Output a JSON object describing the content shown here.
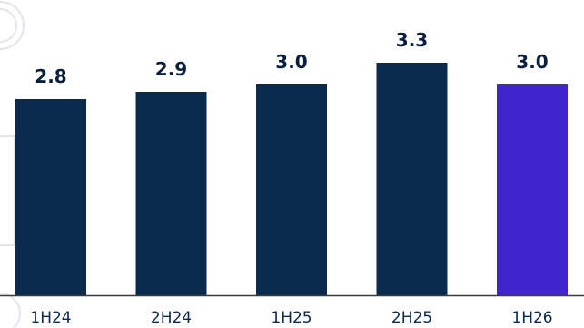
{
  "chart_data": {
    "type": "bar",
    "categories": [
      "1H24",
      "2H24",
      "1H25",
      "2H25",
      "1H26"
    ],
    "values": [
      2.8,
      2.9,
      3.0,
      3.3,
      3.0
    ],
    "data_labels": [
      "2.8",
      "2.9",
      "3.0",
      "3.3",
      "3.0"
    ],
    "title": "",
    "xlabel": "",
    "ylabel": "",
    "ylim": [
      0,
      3.3
    ],
    "grid": false,
    "legend": "none",
    "colors": {
      "default_bar": "#0a2b4e",
      "highlight_bar": "#4125cc",
      "label_text": "#0a1f3d",
      "tick_text": "#0a2b4e",
      "axis_line": "#3a3a3a"
    },
    "highlight_index": 4
  }
}
